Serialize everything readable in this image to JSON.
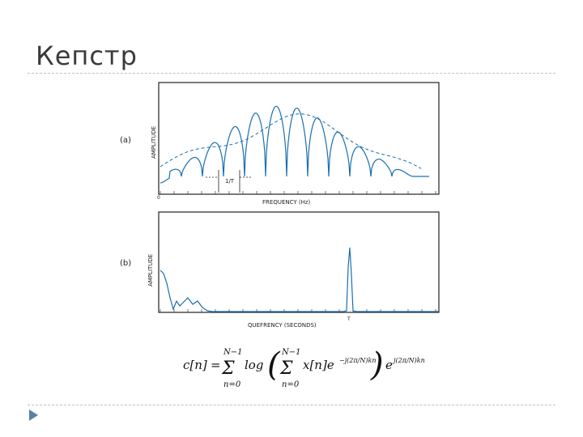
{
  "slide": {
    "title": "Кепстр"
  },
  "figure": {
    "panel_a": {
      "tag": "(a)",
      "ylabel": "AMPLITUDE",
      "xlabel": "FREQUENCY (Hz)",
      "marker_label": "1/T",
      "origin": "0"
    },
    "panel_b": {
      "tag": "(b)",
      "ylabel": "AMPLITUDE",
      "xlabel": "QUEFRENCY (SECONDS)",
      "peak_label": "T"
    }
  },
  "formula": {
    "lhs": "c[n]",
    "eq": "=",
    "sum_upper": "N−1",
    "sum_lower": "n=0",
    "log": "log",
    "inner_term": "x[n]e",
    "inner_exp": "−j(2π/N)kn",
    "outer_term": "e",
    "outer_exp": "j(2π/N)kn"
  },
  "colors": {
    "curve": "#1a6fb0",
    "axis": "#222222",
    "rule": "#b9c3cf",
    "nav": "#5b7fa3"
  }
}
